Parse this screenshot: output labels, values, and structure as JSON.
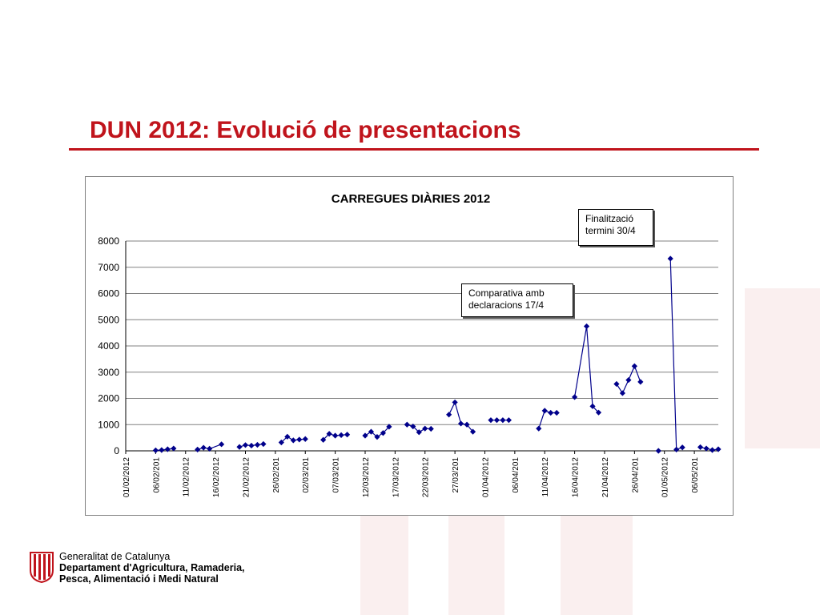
{
  "slide": {
    "title": "DUN 2012: Evolució de presentacions",
    "colors": {
      "title": "#c0141c",
      "series": "#00008b"
    }
  },
  "footer": {
    "line1": "Generalitat de Catalunya",
    "line2": "Departament d'Agricultura, Ramaderia,",
    "line3": "Pesca, Alimentació i Medi Natural",
    "logo": "senyera-shield-icon"
  },
  "annotations": {
    "finalitzacio": [
      "Finalització",
      "termini 30/4"
    ],
    "comparativa": [
      "Comparativa amb",
      "declaracions 17/4"
    ]
  },
  "chart_data": {
    "type": "line",
    "title": "CARREGUES DIÀRIES 2012",
    "xlabel": "",
    "ylabel": "",
    "ylim": [
      0,
      8000
    ],
    "yticks": [
      0,
      1000,
      2000,
      3000,
      4000,
      5000,
      6000,
      7000,
      8000
    ],
    "grid": true,
    "legend": "none",
    "x_tick_labels": [
      "01/02/2012",
      "06/02/201",
      "11/02/2012",
      "16/02/2012",
      "21/02/2012",
      "26/02/201",
      "02/03/201",
      "07/03/201",
      "12/03/2012",
      "17/03/2012",
      "22/03/2012",
      "27/03/201",
      "01/04/2012",
      "06/04/201",
      "11/04/2012",
      "16/04/2012",
      "21/04/2012",
      "26/04/201",
      "01/05/2012",
      "06/05/201"
    ],
    "series": [
      {
        "x": [
          "2012-02-06",
          "2012-02-07",
          "2012-02-08",
          "2012-02-09",
          "2012-02-13",
          "2012-02-14",
          "2012-02-15",
          "2012-02-17",
          "2012-02-20",
          "2012-02-21",
          "2012-02-22",
          "2012-02-23",
          "2012-02-24",
          "2012-02-27",
          "2012-02-28",
          "2012-02-29",
          "2012-03-01",
          "2012-03-02",
          "2012-03-05",
          "2012-03-06",
          "2012-03-07",
          "2012-03-08",
          "2012-03-09",
          "2012-03-12",
          "2012-03-13",
          "2012-03-14",
          "2012-03-15",
          "2012-03-16",
          "2012-03-19",
          "2012-03-20",
          "2012-03-21",
          "2012-03-22",
          "2012-03-23",
          "2012-03-26",
          "2012-03-27",
          "2012-03-28",
          "2012-03-29",
          "2012-03-30",
          "2012-04-02",
          "2012-04-03",
          "2012-04-04",
          "2012-04-05",
          "2012-04-10",
          "2012-04-11",
          "2012-04-12",
          "2012-04-13",
          "2012-04-16",
          "2012-04-18",
          "2012-04-19",
          "2012-04-20",
          "2012-04-23",
          "2012-04-24",
          "2012-04-25",
          "2012-04-26",
          "2012-04-27",
          "2012-04-30",
          "2012-05-02",
          "2012-05-03",
          "2012-05-04",
          "2012-05-07",
          "2012-05-08",
          "2012-05-09",
          "2012-05-10"
        ],
        "y": [
          20,
          30,
          60,
          90,
          50,
          120,
          80,
          250,
          150,
          220,
          200,
          230,
          260,
          320,
          540,
          400,
          430,
          450,
          420,
          650,
          580,
          600,
          620,
          580,
          730,
          530,
          680,
          920,
          1000,
          930,
          710,
          850,
          840,
          1380,
          1850,
          1040,
          1000,
          730,
          1170,
          1170,
          1170,
          1170,
          850,
          1530,
          1450,
          1450,
          2050,
          4750,
          1700,
          1460,
          2550,
          2200,
          2700,
          3230,
          2630,
          0,
          7330,
          50,
          130,
          140,
          90,
          30,
          60
        ],
        "segments": [
          [
            0,
            3
          ],
          [
            4,
            7
          ],
          [
            8,
            12
          ],
          [
            13,
            17
          ],
          [
            18,
            22
          ],
          [
            23,
            27
          ],
          [
            28,
            32
          ],
          [
            33,
            37
          ],
          [
            38,
            41
          ],
          [
            42,
            45
          ],
          [
            46,
            49
          ],
          [
            50,
            54
          ],
          [
            55,
            55
          ],
          [
            56,
            58
          ],
          [
            59,
            62
          ]
        ]
      }
    ]
  }
}
